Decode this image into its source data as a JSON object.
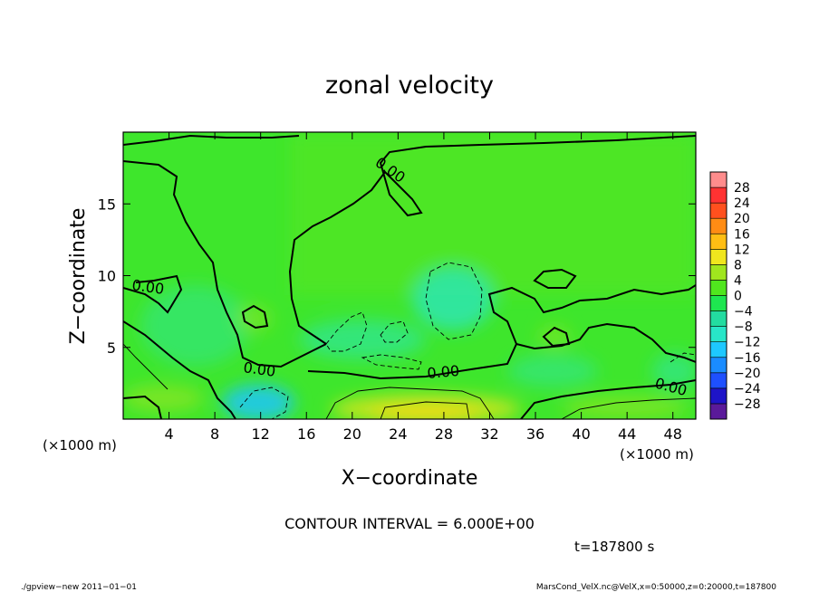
{
  "chart_data": {
    "type": "heatmap",
    "title": "zonal velocity",
    "xlabel": "X−coordinate",
    "ylabel": "Z−coordinate",
    "x_unit_left": "(×1000 m)",
    "x_unit_right": "(×1000 m)",
    "xlim": [
      0,
      50
    ],
    "ylim": [
      0,
      20
    ],
    "x_ticks": [
      4,
      8,
      12,
      16,
      20,
      24,
      28,
      32,
      36,
      40,
      44,
      48
    ],
    "y_ticks": [
      5,
      10,
      15
    ],
    "contour_label": "0.00",
    "contour_interval_text": "CONTOUR INTERVAL = 6.000E+00",
    "time_text": "t=187800 s",
    "colorbar": {
      "levels": [
        -28,
        -24,
        -20,
        -16,
        -12,
        -8,
        -4,
        0,
        4,
        8,
        12,
        16,
        20,
        24,
        28
      ],
      "colors": [
        "#5a1a9a",
        "#1e14c8",
        "#1e50ff",
        "#1a8cff",
        "#1ec8ff",
        "#28e6c8",
        "#23dca0",
        "#1ee650",
        "#50e61e",
        "#a0e61e",
        "#f0e61e",
        "#ffbe14",
        "#ff8c14",
        "#ff501e",
        "#ff3232",
        "#ff8c8c"
      ]
    },
    "grid": false,
    "legend": "right colorbar"
  },
  "footer": {
    "left": "./gpview−new   2011−01−01",
    "right": "MarsCond_VelX.nc@VelX,x=0:50000,z=0:20000,t=187800"
  }
}
